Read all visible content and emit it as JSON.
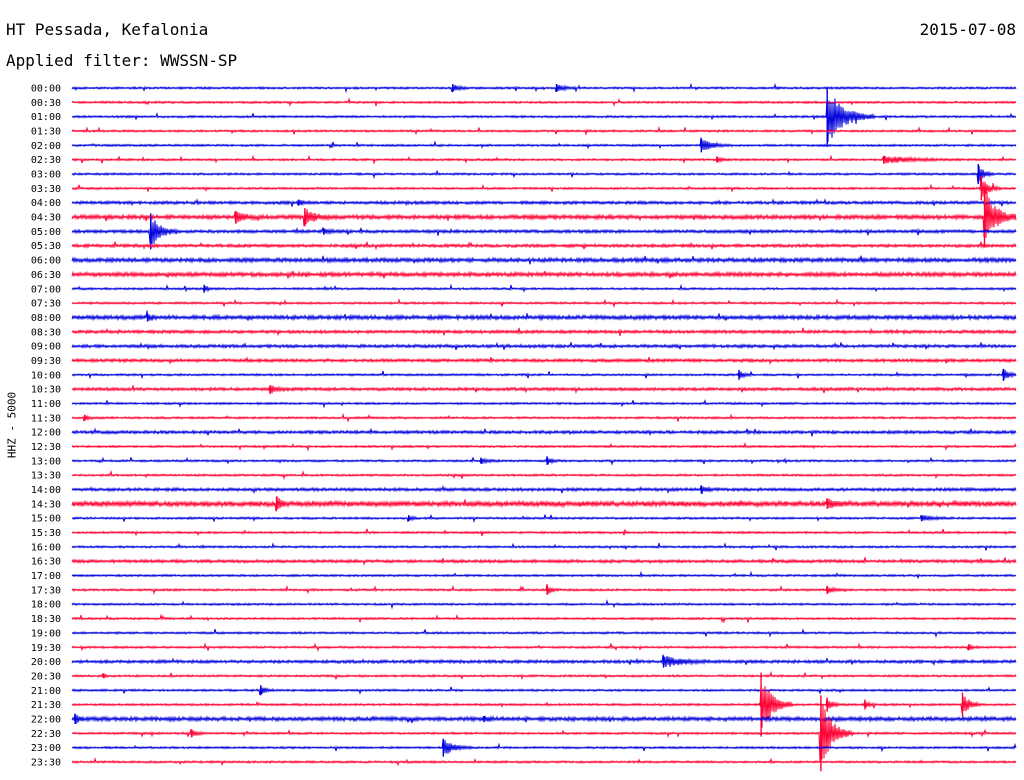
{
  "header": {
    "station": "HT Pessada, Kefalonia",
    "date": "2015-07-08",
    "filter": "Applied filter: WWSSN-SP"
  },
  "colors": {
    "trace_a": "#0000dd",
    "trace_b": "#ff0033",
    "text": "#000000",
    "background": "#ffffff"
  },
  "chart_data": {
    "type": "line",
    "title": "HT Pessada, Kefalonia",
    "subtitle": "Applied filter: WWSSN-SP",
    "ylabel": "HHZ - 5000",
    "rows": [
      "00:00",
      "00:30",
      "01:00",
      "01:30",
      "02:00",
      "02:30",
      "03:00",
      "03:30",
      "04:00",
      "04:30",
      "05:00",
      "05:30",
      "06:00",
      "06:30",
      "07:00",
      "07:30",
      "08:00",
      "08:30",
      "09:00",
      "09:30",
      "10:00",
      "10:30",
      "11:00",
      "11:30",
      "12:00",
      "12:30",
      "13:00",
      "13:30",
      "14:00",
      "14:30",
      "15:00",
      "15:30",
      "16:00",
      "16:30",
      "17:00",
      "17:30",
      "18:00",
      "18:30",
      "19:00",
      "19:30",
      "20:00",
      "20:30",
      "21:00",
      "21:30",
      "22:00",
      "22:30",
      "23:00",
      "23:30"
    ],
    "row_minutes": 30,
    "row_colors": [
      "trace_a",
      "trace_b"
    ],
    "noise_level": [
      1,
      1,
      1,
      1,
      1,
      1,
      1,
      1,
      1.5,
      2,
      1.5,
      1.5,
      2,
      2,
      1,
      1,
      2,
      1.5,
      1.5,
      1.5,
      1,
      1.5,
      1,
      1,
      1.5,
      1,
      1,
      1,
      1.5,
      2.5,
      1,
      1,
      1,
      1.5,
      1,
      1,
      1,
      1,
      1,
      1,
      1.5,
      1,
      1,
      1,
      2,
      1,
      1,
      1
    ],
    "events": [
      {
        "row": 0,
        "minute": 12.1,
        "amp": 4,
        "duration": 0.5
      },
      {
        "row": 0,
        "minute": 15.4,
        "amp": 4,
        "duration": 0.6
      },
      {
        "row": 2,
        "minute": 24.0,
        "amp": 30,
        "duration": 1.5
      },
      {
        "row": 4,
        "minute": 20.0,
        "amp": 7,
        "duration": 1.0
      },
      {
        "row": 5,
        "minute": 20.5,
        "amp": 3,
        "duration": 0.4
      },
      {
        "row": 5,
        "minute": 25.8,
        "amp": 4,
        "duration": 2.5
      },
      {
        "row": 6,
        "minute": 28.8,
        "amp": 10,
        "duration": 0.5
      },
      {
        "row": 7,
        "minute": 28.9,
        "amp": 12,
        "duration": 0.6
      },
      {
        "row": 8,
        "minute": 7.2,
        "amp": 3,
        "duration": 0.4
      },
      {
        "row": 9,
        "minute": 5.2,
        "amp": 6,
        "duration": 0.8
      },
      {
        "row": 9,
        "minute": 7.4,
        "amp": 9,
        "duration": 0.8
      },
      {
        "row": 9,
        "minute": 29.0,
        "amp": 30,
        "duration": 1.0
      },
      {
        "row": 10,
        "minute": 2.5,
        "amp": 18,
        "duration": 0.8
      },
      {
        "row": 10,
        "minute": 8.0,
        "amp": 3,
        "duration": 0.4
      },
      {
        "row": 14,
        "minute": 4.2,
        "amp": 4,
        "duration": 0.3
      },
      {
        "row": 16,
        "minute": 2.4,
        "amp": 4,
        "duration": 0.3
      },
      {
        "row": 20,
        "minute": 21.2,
        "amp": 5,
        "duration": 0.4
      },
      {
        "row": 20,
        "minute": 29.6,
        "amp": 6,
        "duration": 0.5
      },
      {
        "row": 21,
        "minute": 6.3,
        "amp": 4,
        "duration": 0.6
      },
      {
        "row": 23,
        "minute": 0.4,
        "amp": 3,
        "duration": 0.3
      },
      {
        "row": 26,
        "minute": 13.0,
        "amp": 3,
        "duration": 0.6
      },
      {
        "row": 26,
        "minute": 15.1,
        "amp": 4,
        "duration": 0.4
      },
      {
        "row": 28,
        "minute": 20.0,
        "amp": 4,
        "duration": 0.4
      },
      {
        "row": 29,
        "minute": 6.5,
        "amp": 7,
        "duration": 0.4
      },
      {
        "row": 29,
        "minute": 24.0,
        "amp": 5,
        "duration": 0.6
      },
      {
        "row": 30,
        "minute": 10.7,
        "amp": 3,
        "duration": 0.3
      },
      {
        "row": 30,
        "minute": 27.0,
        "amp": 3,
        "duration": 1.0
      },
      {
        "row": 35,
        "minute": 15.1,
        "amp": 5,
        "duration": 0.4
      },
      {
        "row": 35,
        "minute": 24.0,
        "amp": 4,
        "duration": 0.6
      },
      {
        "row": 39,
        "minute": 28.5,
        "amp": 3,
        "duration": 0.3
      },
      {
        "row": 40,
        "minute": 18.8,
        "amp": 6,
        "duration": 1.6
      },
      {
        "row": 41,
        "minute": 1.0,
        "amp": 2,
        "duration": 0.2
      },
      {
        "row": 42,
        "minute": 6.0,
        "amp": 5,
        "duration": 0.4
      },
      {
        "row": 43,
        "minute": 21.9,
        "amp": 32,
        "duration": 1.0
      },
      {
        "row": 43,
        "minute": 24.0,
        "amp": 7,
        "duration": 0.4
      },
      {
        "row": 43,
        "minute": 25.2,
        "amp": 5,
        "duration": 0.3
      },
      {
        "row": 43,
        "minute": 28.3,
        "amp": 12,
        "duration": 0.6
      },
      {
        "row": 44,
        "minute": 0.1,
        "amp": 5,
        "duration": 0.3
      },
      {
        "row": 44,
        "minute": 13.1,
        "amp": 3,
        "duration": 0.4
      },
      {
        "row": 45,
        "minute": 3.8,
        "amp": 4,
        "duration": 0.4
      },
      {
        "row": 45,
        "minute": 23.8,
        "amp": 38,
        "duration": 1.0
      },
      {
        "row": 46,
        "minute": 11.8,
        "amp": 9,
        "duration": 0.9
      }
    ]
  }
}
